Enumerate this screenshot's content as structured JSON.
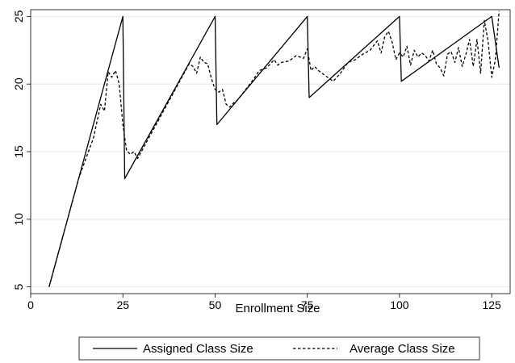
{
  "chart_data": {
    "type": "line",
    "title": "",
    "xlabel": "Enrollment Size",
    "ylabel": "",
    "xlim": [
      0,
      130
    ],
    "ylim": [
      4.5,
      25.5
    ],
    "xticks": [
      0,
      25,
      50,
      75,
      100,
      125
    ],
    "yticks": [
      5,
      10,
      15,
      20,
      25
    ],
    "grid": "horizontal",
    "legend_position": "bottom",
    "series": [
      {
        "name": "Assigned Class Size",
        "style": "solid",
        "x": [
          5,
          25,
          25.5,
          50,
          50.5,
          75,
          75.5,
          100,
          100.5,
          125,
          127
        ],
        "y": [
          5,
          25,
          13,
          25,
          17,
          25,
          19,
          25,
          20.2,
          25,
          21.2
        ]
      },
      {
        "name": "Average Class Size",
        "style": "dashed",
        "x": [
          5,
          7,
          9,
          11,
          13,
          15,
          17,
          19,
          20,
          21,
          22,
          23,
          24,
          25,
          26,
          27,
          28,
          29,
          30,
          32,
          34,
          36,
          38,
          40,
          42,
          43,
          44,
          45,
          46,
          47,
          48,
          49,
          50,
          51,
          52,
          53,
          54,
          55,
          56,
          58,
          60,
          62,
          64,
          66,
          67,
          68,
          70,
          72,
          74,
          75,
          76,
          77,
          78,
          80,
          82,
          84,
          86,
          88,
          90,
          92,
          94,
          95,
          96,
          97,
          98,
          99,
          100,
          101,
          102,
          103,
          104,
          105,
          106,
          107,
          108,
          109,
          110,
          111,
          112,
          113,
          114,
          115,
          116,
          117,
          118,
          119,
          120,
          121,
          122,
          123,
          124,
          125,
          126,
          127
        ],
        "y": [
          5,
          7,
          9,
          11,
          13,
          14.5,
          16,
          18.5,
          18,
          20.9,
          20.5,
          21,
          20,
          17,
          15.1,
          14.8,
          15,
          14.5,
          15,
          16,
          17,
          18,
          19,
          20,
          21,
          21.5,
          21.3,
          20.8,
          22,
          21.6,
          21.5,
          20.4,
          19.6,
          19.4,
          19.6,
          18.5,
          18.3,
          18.6,
          18.8,
          19.5,
          20.2,
          21,
          21.2,
          21.8,
          21.4,
          21.6,
          21.7,
          22.1,
          21.9,
          22.6,
          21,
          21.3,
          21,
          20.6,
          20.2,
          20.8,
          21.6,
          21.8,
          22.2,
          22.5,
          23.2,
          22.3,
          23.5,
          23.9,
          23.1,
          21.8,
          22.3,
          22,
          22.8,
          21.4,
          22.5,
          22,
          22.3,
          22.1,
          21.7,
          22.5,
          21.5,
          21.2,
          20.6,
          22.2,
          22.4,
          21.6,
          22.7,
          21.3,
          22.2,
          23.3,
          21.3,
          23.3,
          20.8,
          24.7,
          23.2,
          20.5,
          21.8,
          25.4
        ]
      }
    ]
  }
}
